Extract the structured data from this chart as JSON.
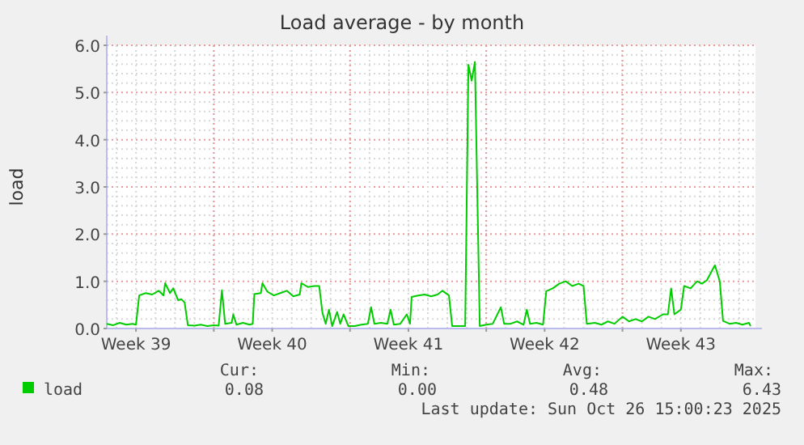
{
  "chart_data": {
    "type": "line",
    "title": "Load average - by month",
    "ylabel": "load",
    "x": [
      "2025-09-23T12:00",
      "2025-09-23T20:00",
      "2025-09-24T04:00",
      "2025-09-24T12:00",
      "2025-09-24T20:00",
      "2025-09-25T00:00",
      "2025-09-25T04:00",
      "2025-09-25T12:00",
      "2025-09-25T20:00",
      "2025-09-26T04:00",
      "2025-09-26T10:00",
      "2025-09-26T12:00",
      "2025-09-26T18:00",
      "2025-09-26T22:00",
      "2025-09-27T04:00",
      "2025-09-27T08:00",
      "2025-09-27T12:00",
      "2025-09-27T16:00",
      "2025-09-28T00:00",
      "2025-09-28T08:00",
      "2025-09-28T16:00",
      "2025-09-29T00:00",
      "2025-09-29T06:00",
      "2025-09-29T10:00",
      "2025-09-29T14:00",
      "2025-09-29T22:00",
      "2025-09-30T00:00",
      "2025-09-30T04:00",
      "2025-09-30T12:00",
      "2025-09-30T20:00",
      "2025-10-01T00:00",
      "2025-10-01T02:00",
      "2025-10-01T10:00",
      "2025-10-01T12:00",
      "2025-10-01T18:00",
      "2025-10-02T02:00",
      "2025-10-02T10:00",
      "2025-10-02T18:00",
      "2025-10-03T02:00",
      "2025-10-03T10:00",
      "2025-10-03T12:00",
      "2025-10-03T20:00",
      "2025-10-04T04:00",
      "2025-10-04T10:00",
      "2025-10-04T14:00",
      "2025-10-04T18:00",
      "2025-10-04T22:00",
      "2025-10-05T02:00",
      "2025-10-05T08:00",
      "2025-10-05T12:00",
      "2025-10-05T16:00",
      "2025-10-05T22:00",
      "2025-10-06T06:00",
      "2025-10-06T14:00",
      "2025-10-06T22:00",
      "2025-10-07T02:00",
      "2025-10-07T06:00",
      "2025-10-07T14:00",
      "2025-10-07T22:00",
      "2025-10-08T02:00",
      "2025-10-08T06:00",
      "2025-10-08T14:00",
      "2025-10-08T22:00",
      "2025-10-09T02:00",
      "2025-10-09T04:00",
      "2025-10-09T12:00",
      "2025-10-09T20:00",
      "2025-10-10T04:00",
      "2025-10-10T12:00",
      "2025-10-10T18:00",
      "2025-10-11T02:00",
      "2025-10-11T06:00",
      "2025-10-11T14:00",
      "2025-10-11T22:00",
      "2025-10-12T02:00",
      "2025-10-12T06:00",
      "2025-10-12T10:00",
      "2025-10-12T16:00",
      "2025-10-13T00:00",
      "2025-10-13T08:00",
      "2025-10-13T18:00",
      "2025-10-13T22:00",
      "2025-10-14T06:00",
      "2025-10-14T14:00",
      "2025-10-14T22:00",
      "2025-10-15T02:00",
      "2025-10-15T06:00",
      "2025-10-15T14:00",
      "2025-10-15T22:00",
      "2025-10-16T02:00",
      "2025-10-16T10:00",
      "2025-10-16T18:00",
      "2025-10-17T02:00",
      "2025-10-17T10:00",
      "2025-10-17T18:00",
      "2025-10-18T00:00",
      "2025-10-18T04:00",
      "2025-10-18T14:00",
      "2025-10-18T22:00",
      "2025-10-19T06:00",
      "2025-10-19T14:00",
      "2025-10-20T00:00",
      "2025-10-20T08:00",
      "2025-10-20T16:00",
      "2025-10-21T00:00",
      "2025-10-21T08:00",
      "2025-10-21T16:00",
      "2025-10-22T02:00",
      "2025-10-22T08:00",
      "2025-10-22T12:00",
      "2025-10-22T16:00",
      "2025-10-23T00:00",
      "2025-10-23T04:00",
      "2025-10-23T12:00",
      "2025-10-23T20:00",
      "2025-10-24T02:00",
      "2025-10-24T08:00",
      "2025-10-24T18:00",
      "2025-10-25T00:00",
      "2025-10-25T04:00",
      "2025-10-25T12:00",
      "2025-10-25T20:00",
      "2025-10-26T04:00",
      "2025-10-26T12:00",
      "2025-10-26T14:00"
    ],
    "series": [
      {
        "name": "load",
        "color": "#00cc00",
        "values": [
          0.1,
          0.07,
          0.12,
          0.08,
          0.1,
          0.08,
          0.7,
          0.75,
          0.72,
          0.8,
          0.7,
          0.96,
          0.75,
          0.85,
          0.6,
          0.62,
          0.55,
          0.07,
          0.06,
          0.08,
          0.05,
          0.07,
          0.06,
          0.81,
          0.1,
          0.12,
          0.3,
          0.08,
          0.12,
          0.08,
          0.1,
          0.73,
          0.75,
          0.96,
          0.78,
          0.7,
          0.75,
          0.8,
          0.68,
          0.72,
          0.96,
          0.88,
          0.9,
          0.9,
          0.33,
          0.1,
          0.4,
          0.05,
          0.35,
          0.1,
          0.3,
          0.05,
          0.05,
          0.08,
          0.1,
          0.45,
          0.1,
          0.12,
          0.1,
          0.4,
          0.08,
          0.1,
          0.3,
          0.1,
          0.67,
          0.7,
          0.72,
          0.68,
          0.72,
          0.8,
          0.7,
          0.05,
          0.05,
          0.05,
          5.59,
          5.25,
          5.65,
          0.05,
          0.08,
          0.1,
          0.45,
          0.1,
          0.1,
          0.15,
          0.08,
          0.4,
          0.1,
          0.12,
          0.08,
          0.79,
          0.85,
          0.95,
          1.0,
          0.9,
          0.95,
          0.9,
          0.1,
          0.12,
          0.08,
          0.15,
          0.1,
          0.25,
          0.15,
          0.2,
          0.15,
          0.25,
          0.2,
          0.3,
          0.3,
          0.85,
          0.3,
          0.4,
          0.9,
          0.85,
          1.0,
          0.95,
          1.02,
          1.34,
          1.0,
          0.16,
          0.1,
          0.12,
          0.08,
          0.12,
          0.05
        ]
      }
    ],
    "xlim": [
      "2025-09-23T12:00",
      "2025-10-26T20:00"
    ],
    "xticks": [
      {
        "value": "2025-09-25T00:00",
        "label": "Week 39"
      },
      {
        "value": "2025-09-29T00:00",
        "label": null
      },
      {
        "value": "2025-10-02T00:00",
        "label": "Week 40"
      },
      {
        "value": "2025-10-06T00:00",
        "label": null
      },
      {
        "value": "2025-10-09T00:00",
        "label": "Week 41"
      },
      {
        "value": "2025-10-13T00:00",
        "label": null
      },
      {
        "value": "2025-10-16T00:00",
        "label": "Week 42"
      },
      {
        "value": "2025-10-20T00:00",
        "label": null
      },
      {
        "value": "2025-10-23T00:00",
        "label": "Week 43"
      }
    ],
    "ylim": [
      0,
      6
    ],
    "yticks": [
      {
        "value": 0,
        "label": "0.0"
      },
      {
        "value": 1,
        "label": "1.0"
      },
      {
        "value": 2,
        "label": "2.0"
      },
      {
        "value": 3,
        "label": "3.0"
      },
      {
        "value": 4,
        "label": "4.0"
      },
      {
        "value": 5,
        "label": "5.0"
      },
      {
        "value": 6,
        "label": "6.0"
      }
    ],
    "grid": true,
    "legend": "bottom left",
    "marker": "none",
    "line_style": "solid",
    "annotations": [
      "Cur:",
      "Min:",
      "Avg:",
      "Max:",
      "0.08",
      "0.00",
      "0.48",
      "6.43",
      "Last update: Sun Oct 26 15:00:23 2025"
    ]
  }
}
